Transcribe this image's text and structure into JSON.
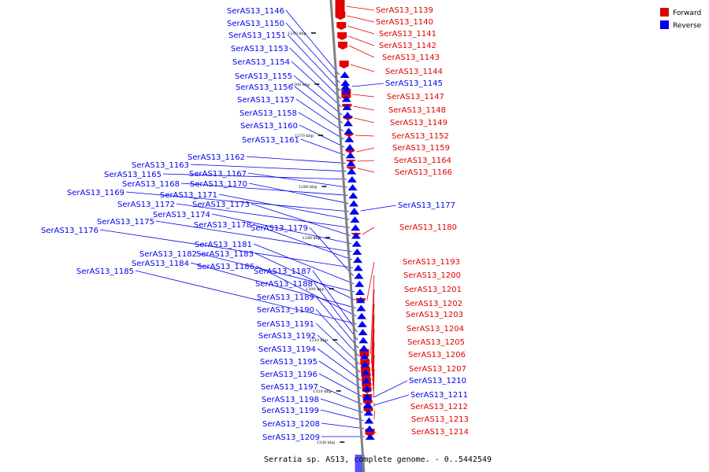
{
  "caption": "Serratia sp. AS13, complete genome. - 0..5442549",
  "legend": {
    "forward_label": "Forward",
    "reverse_label": "Reverse",
    "forward_color": "#e00000",
    "reverse_color": "#0000ee"
  },
  "ruler": [
    "1250 kbp",
    "1260 kbp",
    "1270 kbp",
    "1280 kbp",
    "1290 kbp",
    "1300 kbp",
    "1310 kbp",
    "1320 kbp",
    "1330 kbp"
  ],
  "forward_genes": [
    "SerAS13_1139",
    "SerAS13_1140",
    "SerAS13_1141",
    "SerAS13_1142",
    "SerAS13_1143",
    "SerAS13_1144",
    "SerAS13_1147",
    "SerAS13_1148",
    "SerAS13_1149",
    "SerAS13_1152",
    "SerAS13_1159",
    "SerAS13_1164",
    "SerAS13_1166",
    "SerAS13_1180",
    "SerAS13_1193",
    "SerAS13_1200",
    "SerAS13_1201",
    "SerAS13_1202",
    "SerAS13_1203",
    "SerAS13_1204",
    "SerAS13_1205",
    "SerAS13_1206",
    "SerAS13_1207",
    "SerAS13_1212",
    "SerAS13_1213",
    "SerAS13_1214"
  ],
  "reverse_right_genes": [
    "SerAS13_1145",
    "SerAS13_1177",
    "SerAS13_1210",
    "SerAS13_1211"
  ],
  "reverse_left_genes": [
    "SerAS13_1146",
    "SerAS13_1150",
    "SerAS13_1151",
    "SerAS13_1153",
    "SerAS13_1154",
    "SerAS13_1155",
    "SerAS13_1156",
    "SerAS13_1157",
    "SerAS13_1158",
    "SerAS13_1160",
    "SerAS13_1161",
    "SerAS13_1162",
    "SerAS13_1163",
    "SerAS13_1165",
    "SerAS13_1167",
    "SerAS13_1168",
    "SerAS13_1170",
    "SerAS13_1169",
    "SerAS13_1171",
    "SerAS13_1172",
    "SerAS13_1173",
    "SerAS13_1174",
    "SerAS13_1175",
    "SerAS13_1178",
    "SerAS13_1176",
    "SerAS13_1179",
    "SerAS13_1181",
    "SerAS13_1182",
    "SerAS13_1183",
    "SerAS13_1184",
    "SerAS13_1186",
    "SerAS13_1185",
    "SerAS13_1187",
    "SerAS13_1188",
    "SerAS13_1189",
    "SerAS13_1190",
    "SerAS13_1191",
    "SerAS13_1192",
    "SerAS13_1194",
    "SerAS13_1195",
    "SerAS13_1196",
    "SerAS13_1197",
    "SerAS13_1198",
    "SerAS13_1199",
    "SerAS13_1208",
    "SerAS13_1209"
  ]
}
